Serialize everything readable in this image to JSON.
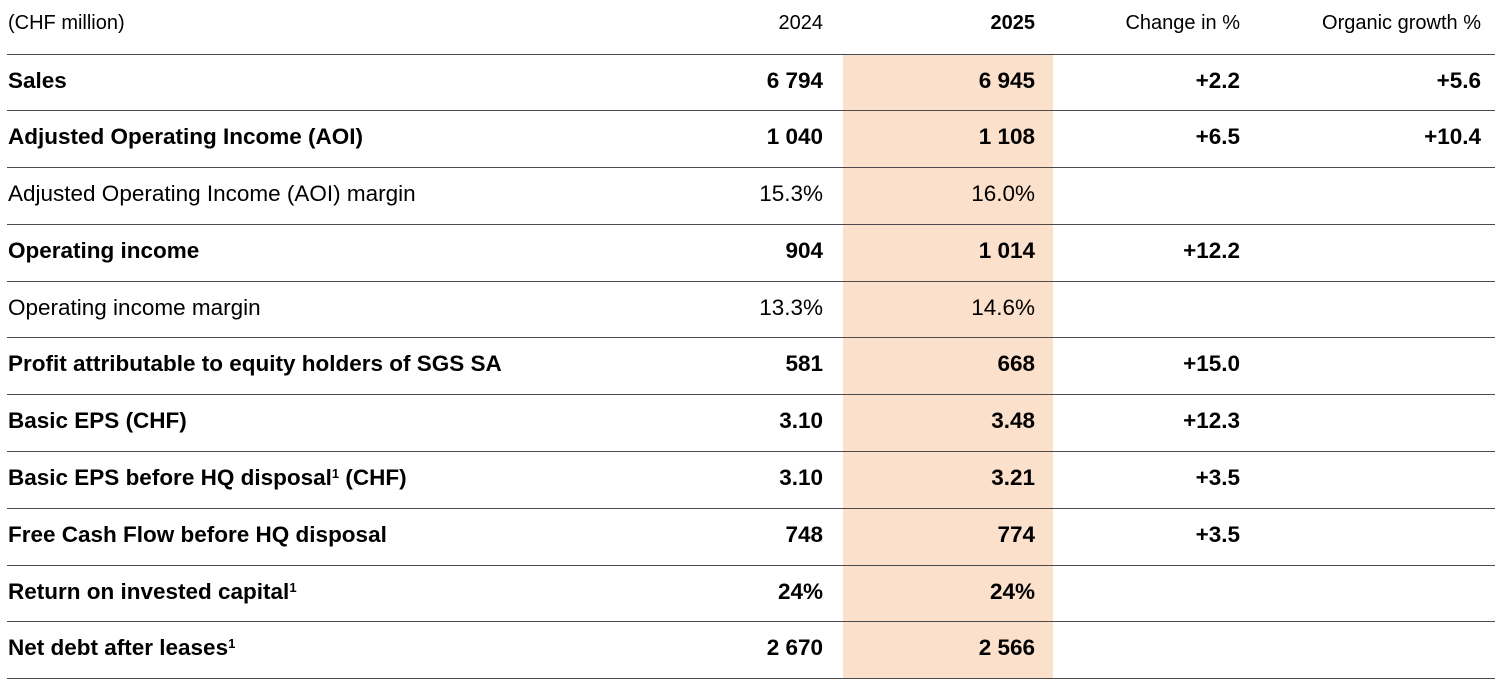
{
  "colors": {
    "highlight_2025": "#fbe0cb",
    "rule": "#4b4b4e",
    "text": "#000000",
    "background": "#ffffff"
  },
  "table": {
    "unit_label": "(CHF million)",
    "col_headers": {
      "y2024": "2024",
      "y2025": "2025",
      "change": "Change in %",
      "organic": "Organic growth %"
    },
    "rows": [
      {
        "label": "Sales",
        "sup": "",
        "suffix": "",
        "bold": true,
        "y2024": "6 794",
        "y2025": "6 945",
        "change": "+2.2",
        "organic": "+5.6"
      },
      {
        "label": "Adjusted Operating Income (AOI)",
        "sup": "",
        "suffix": "",
        "bold": true,
        "y2024": "1 040",
        "y2025": "1 108",
        "change": "+6.5",
        "organic": "+10.4"
      },
      {
        "label": "Adjusted Operating Income (AOI) margin",
        "sup": "",
        "suffix": "",
        "bold": false,
        "y2024": "15.3%",
        "y2025": "16.0%",
        "change": "",
        "organic": ""
      },
      {
        "label": "Operating income",
        "sup": "",
        "suffix": "",
        "bold": true,
        "y2024": "904",
        "y2025": "1 014",
        "change": "+12.2",
        "organic": ""
      },
      {
        "label": "Operating income margin",
        "sup": "",
        "suffix": "",
        "bold": false,
        "y2024": "13.3%",
        "y2025": "14.6%",
        "change": "",
        "organic": ""
      },
      {
        "label": "Profit attributable to equity holders of SGS SA",
        "sup": "",
        "suffix": "",
        "bold": true,
        "y2024": "581",
        "y2025": "668",
        "change": "+15.0",
        "organic": ""
      },
      {
        "label": "Basic EPS (CHF)",
        "sup": "",
        "suffix": "",
        "bold": true,
        "y2024": "3.10",
        "y2025": "3.48",
        "change": "+12.3",
        "organic": ""
      },
      {
        "label": "Basic EPS before HQ disposal",
        "sup": "1",
        "suffix": " (CHF)",
        "bold": true,
        "y2024": "3.10",
        "y2025": "3.21",
        "change": "+3.5",
        "organic": ""
      },
      {
        "label": "Free Cash Flow before HQ disposal",
        "sup": "",
        "suffix": "",
        "bold": true,
        "y2024": "748",
        "y2025": "774",
        "change": "+3.5",
        "organic": ""
      },
      {
        "label": "Return on invested capital",
        "sup": "1",
        "suffix": "",
        "bold": true,
        "y2024": "24%",
        "y2025": "24%",
        "change": "",
        "organic": ""
      },
      {
        "label": "Net debt after leases",
        "sup": "1",
        "suffix": "",
        "bold": true,
        "y2024": "2 670",
        "y2025": "2 566",
        "change": "",
        "organic": ""
      }
    ]
  }
}
